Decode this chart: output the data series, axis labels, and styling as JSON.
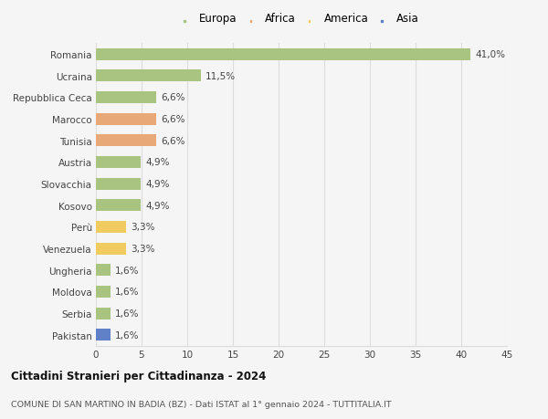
{
  "countries": [
    "Romania",
    "Ucraina",
    "Repubblica Ceca",
    "Marocco",
    "Tunisia",
    "Austria",
    "Slovacchia",
    "Kosovo",
    "Perù",
    "Venezuela",
    "Ungheria",
    "Moldova",
    "Serbia",
    "Pakistan"
  ],
  "values": [
    41.0,
    11.5,
    6.6,
    6.6,
    6.6,
    4.9,
    4.9,
    4.9,
    3.3,
    3.3,
    1.6,
    1.6,
    1.6,
    1.6
  ],
  "labels": [
    "41,0%",
    "11,5%",
    "6,6%",
    "6,6%",
    "6,6%",
    "4,9%",
    "4,9%",
    "4,9%",
    "3,3%",
    "3,3%",
    "1,6%",
    "1,6%",
    "1,6%",
    "1,6%"
  ],
  "continents": [
    "Europa",
    "Europa",
    "Europa",
    "Africa",
    "Africa",
    "Europa",
    "Europa",
    "Europa",
    "America",
    "America",
    "Europa",
    "Europa",
    "Europa",
    "Asia"
  ],
  "colors": {
    "Europa": "#a8c480",
    "Africa": "#e8a878",
    "America": "#f0cc60",
    "Asia": "#6080c8"
  },
  "legend_order": [
    "Europa",
    "Africa",
    "America",
    "Asia"
  ],
  "title": "Cittadini Stranieri per Cittadinanza - 2024",
  "subtitle": "COMUNE DI SAN MARTINO IN BADIA (BZ) - Dati ISTAT al 1° gennaio 2024 - TUTTITALIA.IT",
  "xlim": [
    0,
    45
  ],
  "xticks": [
    0,
    5,
    10,
    15,
    20,
    25,
    30,
    35,
    40,
    45
  ],
  "background_color": "#f5f5f5",
  "grid_color": "#dddddd",
  "bar_height": 0.55
}
